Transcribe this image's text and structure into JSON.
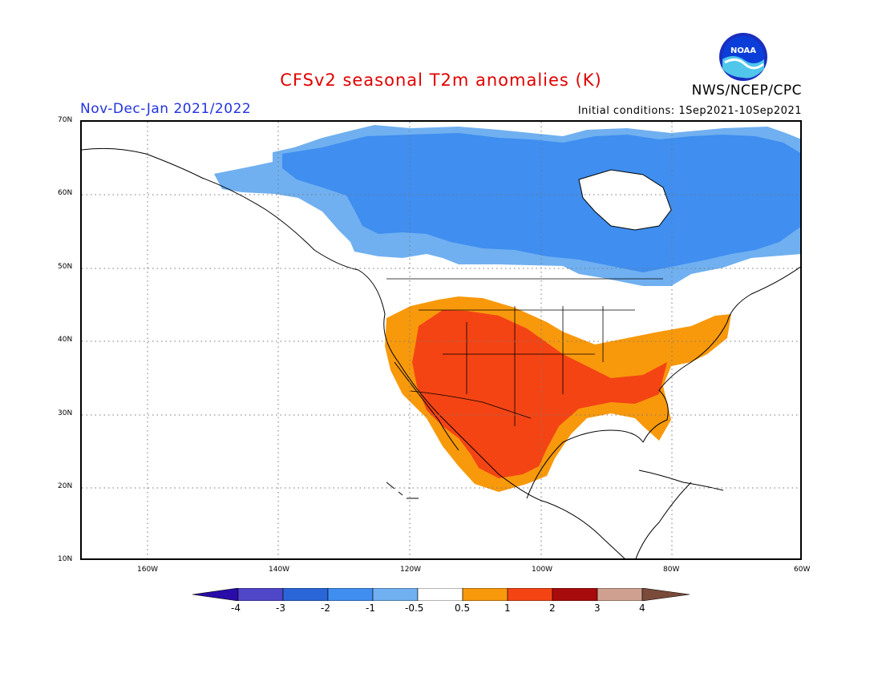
{
  "header": {
    "title": "CFSv2 seasonal T2m anomalies (K)",
    "period": "Nov-Dec-Jan 2021/2022",
    "initial_conditions": "Initial conditions: 1Sep2021-10Sep2021",
    "organization": "NWS/NCEP/CPC",
    "logo_text": "NOAA"
  },
  "map": {
    "lat_labels": [
      "70N",
      "60N",
      "50N",
      "40N",
      "30N",
      "20N",
      "10N"
    ],
    "lon_labels": [
      "160W",
      "140W",
      "120W",
      "100W",
      "80W",
      "60W"
    ],
    "extent": {
      "lon_min": -170,
      "lon_max": -60,
      "lat_min": 10,
      "lat_max": 70
    },
    "anomaly_regions": [
      {
        "region": "Canada / Alaska",
        "category": "-1 to -0.5",
        "color": "#70b0f0"
      },
      {
        "region": "Central Canada",
        "category": "-2 to -1",
        "color": "#3f8ef0"
      },
      {
        "region": "Southwest US",
        "category": "1 to 2",
        "color": "#f44414"
      },
      {
        "region": "Southern US / Mexico",
        "category": "0.5 to 1",
        "color": "#f8990c"
      }
    ]
  },
  "colorbar": {
    "labels": [
      "-4",
      "-3",
      "-2",
      "-1",
      "-0.5",
      "0.5",
      "1",
      "2",
      "3",
      "4"
    ],
    "colors": [
      "#2a0ca8",
      "#5046c8",
      "#2a66d8",
      "#3f8ef0",
      "#70b0f0",
      "#ffffff",
      "#f8990c",
      "#f44414",
      "#a80b0b",
      "#cfa090",
      "#7a4a3a",
      "#4a1c8c"
    ]
  },
  "colors": {
    "title": "#e00000",
    "period": "#2233dd",
    "light_blue": "#70b0f0",
    "mid_blue": "#3f8ef0",
    "orange": "#f8990c",
    "red_orange": "#f44414"
  }
}
